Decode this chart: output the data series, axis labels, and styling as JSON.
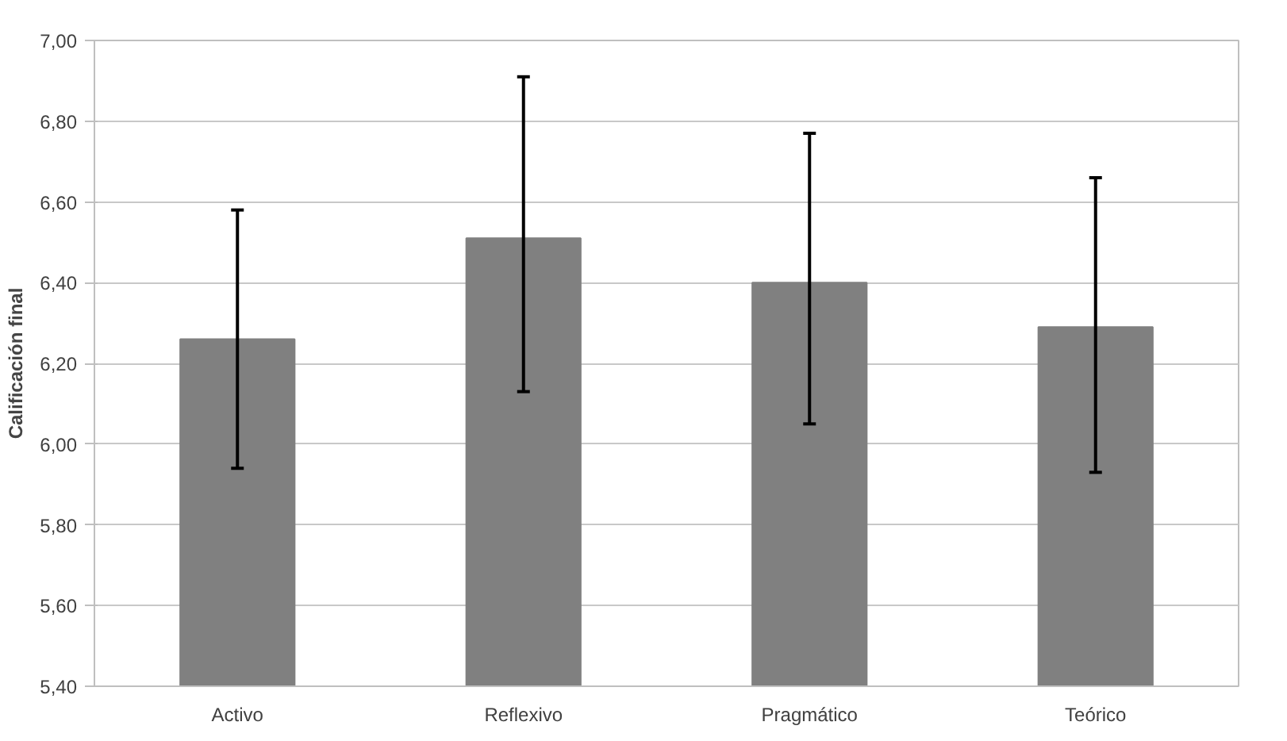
{
  "chart_data": {
    "type": "bar",
    "ylabel": "Calificación final",
    "categories": [
      "Activo",
      "Reflexivo",
      "Pragmático",
      "Teórico"
    ],
    "values": [
      6.26,
      6.51,
      6.4,
      6.29
    ],
    "errors": [
      [
        5.94,
        6.58
      ],
      [
        6.13,
        6.91
      ],
      [
        6.05,
        6.77
      ],
      [
        5.93,
        6.66
      ]
    ],
    "color": "#808080",
    "ylim": [
      5.4,
      7.0
    ],
    "yticks": [
      {
        "value": 5.4,
        "label": "5,40"
      },
      {
        "value": 5.6,
        "label": "5,60"
      },
      {
        "value": 5.8,
        "label": "5,80"
      },
      {
        "value": 6.0,
        "label": "6,00"
      },
      {
        "value": 6.2,
        "label": "6,20"
      },
      {
        "value": 6.4,
        "label": "6,40"
      },
      {
        "value": 6.6,
        "label": "6,60"
      },
      {
        "value": 6.8,
        "label": "6,80"
      },
      {
        "value": 7.0,
        "label": "7,00"
      }
    ],
    "grid": "y"
  }
}
